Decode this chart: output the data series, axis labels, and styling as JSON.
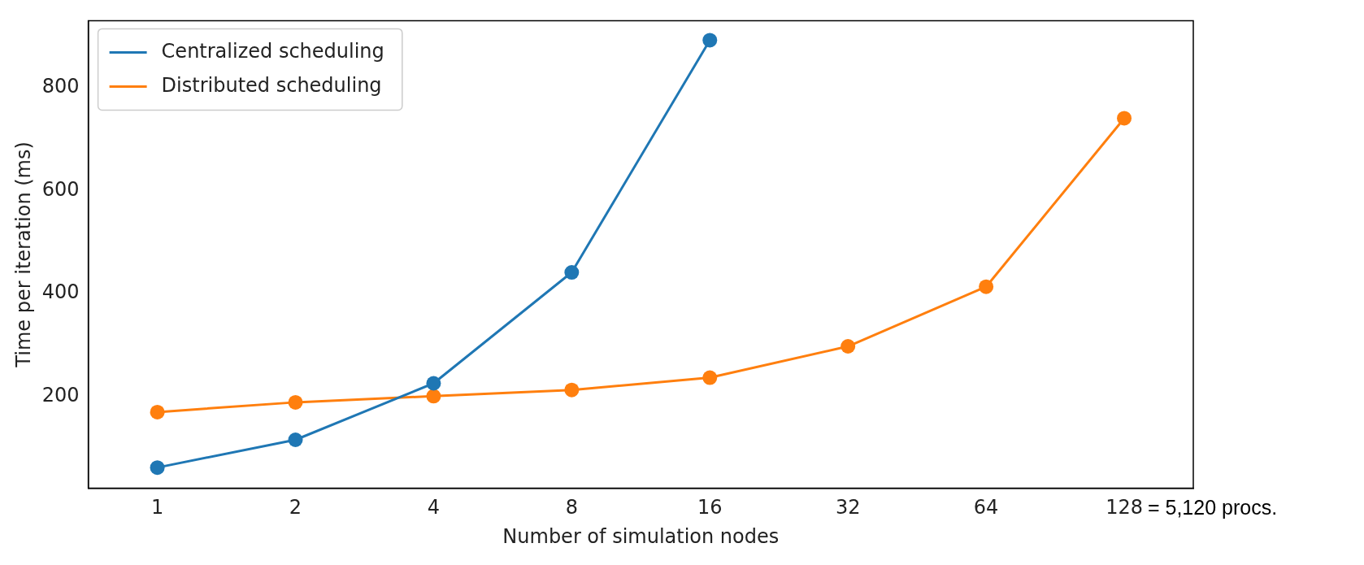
{
  "chart_data": {
    "type": "line",
    "xlabel": "Number of simulation nodes",
    "ylabel": "Time per iteration (ms)",
    "categories": [
      "1",
      "2",
      "4",
      "8",
      "16",
      "32",
      "64",
      "128"
    ],
    "series": [
      {
        "name": "Centralized scheduling",
        "color": "#1f77b4",
        "values": [
          61,
          115,
          225,
          441,
          893,
          null,
          null,
          null
        ]
      },
      {
        "name": "Distributed scheduling",
        "color": "#ff7f0e",
        "values": [
          169,
          188,
          200,
          212,
          236,
          297,
          413,
          741
        ]
      }
    ],
    "ylim": [
      21,
      931
    ],
    "yticks": [
      200,
      400,
      600,
      800
    ],
    "marker": "circle",
    "line_style": "solid",
    "legend": "top left",
    "grid": false,
    "annotations": [
      "= 5,120 procs."
    ]
  }
}
